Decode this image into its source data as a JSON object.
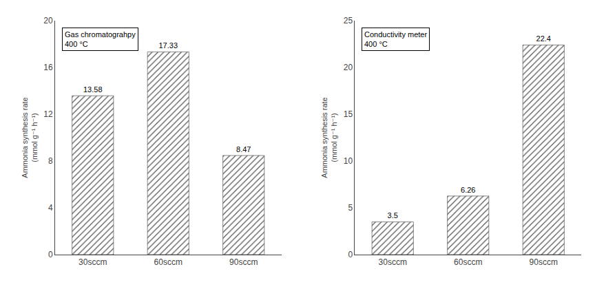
{
  "chart_data": [
    {
      "type": "bar",
      "title": "Gas chromatograhpy\n400 °C",
      "categories": [
        "30sccm",
        "60sccm",
        "90sccm"
      ],
      "values": [
        13.58,
        17.33,
        8.47
      ],
      "ylabel": "Ammonia synthesis rate\n(mmol g⁻¹ h⁻¹)",
      "ylim": [
        0,
        20
      ],
      "yticks": [
        0,
        4,
        8,
        12,
        16,
        20
      ],
      "color": "#cccccc",
      "grid": false,
      "data_labels": true
    },
    {
      "type": "bar",
      "title": "Conductivity meter\n400 °C",
      "categories": [
        "30sccm",
        "60sccm",
        "90sccm"
      ],
      "values": [
        3.5,
        6.26,
        22.4
      ],
      "ylabel": "Ammonia synthesis rate\n(mmol g⁻¹ h⁻¹)",
      "ylim": [
        0,
        25
      ],
      "yticks": [
        0,
        5,
        10,
        15,
        20,
        25
      ],
      "color": "#cccccc",
      "grid": false,
      "data_labels": true
    }
  ]
}
